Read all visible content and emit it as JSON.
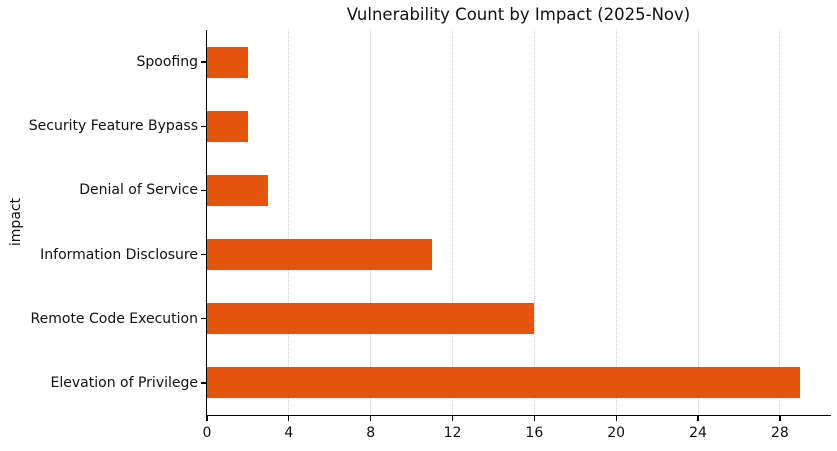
{
  "chart_data": {
    "type": "bar",
    "orientation": "horizontal",
    "title": "Vulnerability Count by Impact (2025-Nov)",
    "xlabel": "",
    "ylabel": "impact",
    "categories": [
      "Spoofing",
      "Security Feature Bypass",
      "Denial of Service",
      "Information Disclosure",
      "Remote Code Execution",
      "Elevation of Privilege"
    ],
    "values": [
      2,
      2,
      3,
      11,
      16,
      29
    ],
    "x_ticks": [
      0,
      4,
      8,
      12,
      16,
      20,
      24,
      28
    ],
    "xlim": [
      0,
      30.45
    ],
    "bar_color": "#e6550d",
    "grid": "vertical-dotted",
    "grid_color": "#c9c9c9",
    "background_color": "#ffffff",
    "legend": "none",
    "spines": [
      "left",
      "bottom"
    ]
  }
}
